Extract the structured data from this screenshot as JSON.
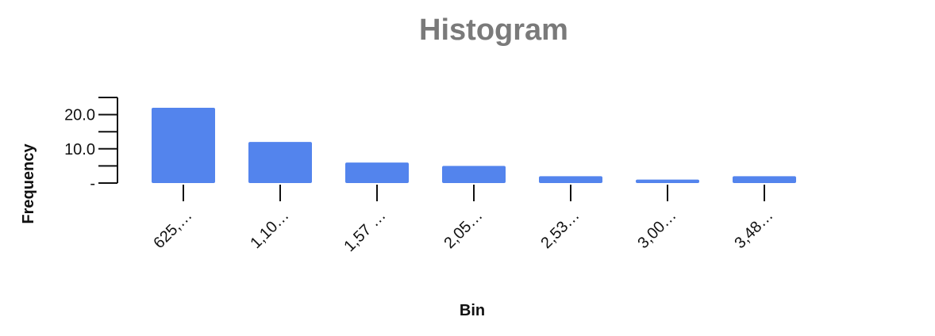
{
  "chart_data": {
    "type": "bar",
    "title": "Histogram",
    "xlabel": "Bin",
    "ylabel": "Frequency",
    "categories": [
      "625,…",
      "1,10…",
      "1,57 …",
      "2,05…",
      "2,53…",
      "3,00…",
      "3,48…"
    ],
    "values": [
      22,
      12,
      6,
      5,
      2,
      1,
      2
    ],
    "ylim": [
      0,
      25
    ],
    "y_ticks": [
      {
        "value": 0,
        "label": "-"
      },
      {
        "value": 10,
        "label": "10.0"
      },
      {
        "value": 20,
        "label": "20.0"
      }
    ],
    "y_minor_step": 5,
    "bar_color": "#5384ed",
    "grid": false,
    "legend": "none"
  }
}
